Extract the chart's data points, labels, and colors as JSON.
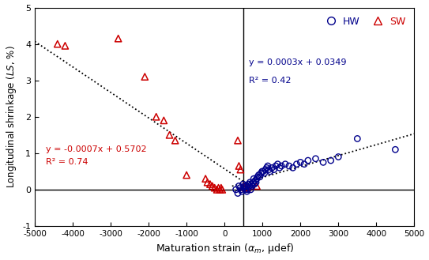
{
  "xlim": [
    -5000,
    5000
  ],
  "ylim": [
    -1,
    5
  ],
  "xticks": [
    -5000,
    -4000,
    -3000,
    -2000,
    -1000,
    0,
    1000,
    2000,
    3000,
    4000,
    5000
  ],
  "yticks": [
    -1,
    0,
    1,
    2,
    3,
    4,
    5
  ],
  "vline_x": 500,
  "sw_eq": "y = -0.0007x + 0.5702",
  "sw_r2": "R² = 0.74",
  "hw_eq": "y = 0.0003x + 0.0349",
  "hw_r2": "R² = 0.42",
  "sw_color": "#CC0000",
  "hw_color": "#00008B",
  "sw_slope": -0.0007,
  "sw_intercept": 0.5702,
  "hw_slope": 0.0003,
  "hw_intercept": 0.0349,
  "sw_x": [
    -4400,
    -4200,
    -2800,
    -2100,
    -1800,
    -1600,
    -1450,
    -1300,
    -1000,
    -500,
    -450,
    -380,
    -320,
    -260,
    -200,
    -160,
    -120,
    -90,
    -60,
    350,
    380,
    420,
    500,
    550,
    600,
    700,
    850
  ],
  "sw_y": [
    4.0,
    3.95,
    4.15,
    3.1,
    2.0,
    1.9,
    1.5,
    1.35,
    0.4,
    0.3,
    0.2,
    0.15,
    0.1,
    0.05,
    0.0,
    0.05,
    0.0,
    0.05,
    0.0,
    1.35,
    0.65,
    0.55,
    0.1,
    0.05,
    0.05,
    0.1,
    0.1
  ],
  "hw_x": [
    300,
    350,
    380,
    410,
    440,
    460,
    490,
    510,
    530,
    550,
    570,
    590,
    610,
    630,
    650,
    670,
    690,
    710,
    730,
    750,
    770,
    790,
    810,
    830,
    850,
    870,
    900,
    930,
    960,
    990,
    1020,
    1050,
    1080,
    1110,
    1140,
    1170,
    1200,
    1250,
    1300,
    1350,
    1400,
    1450,
    1500,
    1600,
    1700,
    1800,
    1900,
    2000,
    2100,
    2200,
    2400,
    2600,
    2800,
    3000,
    3500,
    4500
  ],
  "hw_y": [
    0.0,
    -0.1,
    0.1,
    0.05,
    0.0,
    -0.05,
    0.15,
    0.05,
    0.1,
    0.0,
    0.1,
    -0.05,
    0.0,
    0.15,
    0.1,
    0.2,
    0.0,
    0.15,
    0.1,
    0.2,
    0.3,
    0.15,
    0.25,
    0.2,
    0.3,
    0.35,
    0.4,
    0.35,
    0.45,
    0.5,
    0.5,
    0.45,
    0.55,
    0.6,
    0.65,
    0.55,
    0.5,
    0.6,
    0.55,
    0.65,
    0.7,
    0.6,
    0.65,
    0.7,
    0.65,
    0.6,
    0.7,
    0.75,
    0.7,
    0.8,
    0.85,
    0.75,
    0.8,
    0.9,
    1.4,
    1.1
  ]
}
